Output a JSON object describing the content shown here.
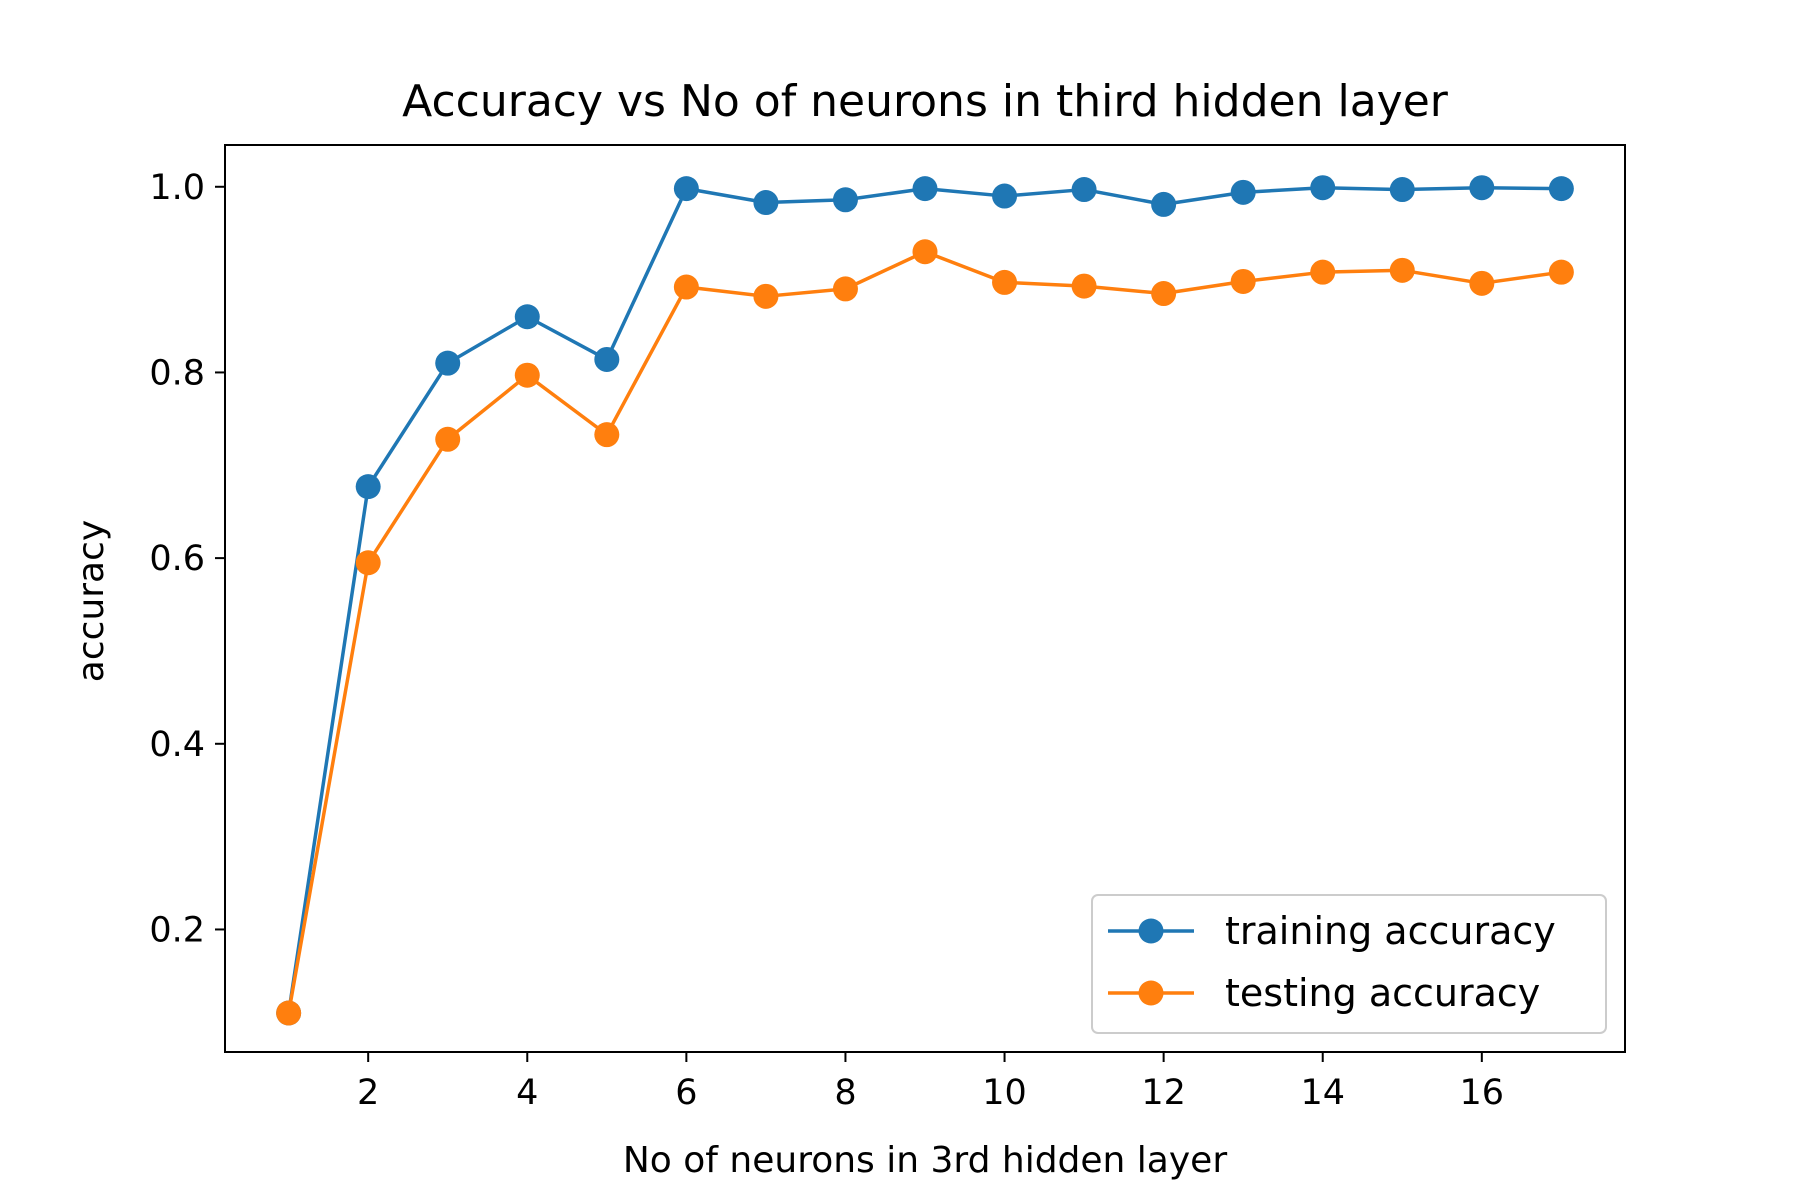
{
  "chart_data": {
    "type": "line",
    "title": "Accuracy vs No of neurons in third hidden layer",
    "xlabel": "No of neurons in 3rd hidden layer",
    "ylabel": "accuracy",
    "xlim": [
      0.2,
      17.8
    ],
    "ylim": [
      0.068,
      1.045
    ],
    "xticks": [
      2,
      4,
      6,
      8,
      10,
      12,
      14,
      16
    ],
    "xtick_labels": [
      "2",
      "4",
      "6",
      "8",
      "10",
      "12",
      "14",
      "16"
    ],
    "yticks": [
      0.2,
      0.4,
      0.6,
      0.8,
      1.0
    ],
    "ytick_labels": [
      "0.2",
      "0.4",
      "0.6",
      "0.8",
      "1.0"
    ],
    "grid": false,
    "legend": {
      "position": "lower-right"
    },
    "x": [
      1,
      2,
      3,
      4,
      5,
      6,
      7,
      8,
      9,
      10,
      11,
      12,
      13,
      14,
      15,
      16,
      17
    ],
    "series": [
      {
        "name": "training accuracy",
        "color": "#1f77b4",
        "marker": "circle",
        "values": [
          0.11,
          0.677,
          0.81,
          0.86,
          0.814,
          0.998,
          0.983,
          0.986,
          0.998,
          0.99,
          0.997,
          0.981,
          0.994,
          0.999,
          0.997,
          0.999,
          0.998
        ]
      },
      {
        "name": "testing accuracy",
        "color": "#ff7f0e",
        "marker": "circle",
        "values": [
          0.11,
          0.595,
          0.728,
          0.797,
          0.733,
          0.892,
          0.882,
          0.89,
          0.93,
          0.897,
          0.893,
          0.885,
          0.898,
          0.908,
          0.91,
          0.896,
          0.908
        ]
      }
    ]
  }
}
